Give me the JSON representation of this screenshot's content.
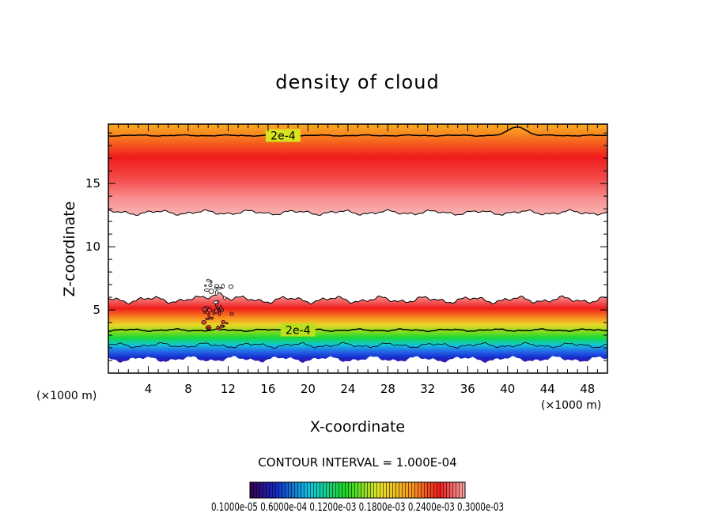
{
  "chart_data": {
    "type": "heatmap",
    "title": "density of cloud",
    "xlabel": "X-coordinate",
    "ylabel": "Z-coordinate",
    "x_unit_left": "(×1000 m)",
    "x_unit_right": "(×1000 m)",
    "xlim": [
      0,
      50
    ],
    "ylim": [
      0,
      19.7
    ],
    "x_ticks": [
      4,
      8,
      12,
      16,
      20,
      24,
      28,
      32,
      36,
      40,
      44,
      48
    ],
    "y_ticks": [
      5,
      10,
      15
    ],
    "colormap": "rainbow (purple → blue → cyan → green → yellow → orange → red → pink)",
    "contour_interval_text": "CONTOUR INTERVAL = 1.000E-04",
    "contour_labels": [
      {
        "text": "2e-4",
        "x": 17.5,
        "z": 18.8
      },
      {
        "text": "2e-4",
        "x": 19,
        "z": 3.4
      }
    ],
    "upper_layer": {
      "z_bottom": 12.7,
      "z_peak": 15,
      "z_top": 19.7,
      "contour_2e4_z": 18.8,
      "bump_x": 41
    },
    "lower_layer": {
      "z_bottom": 1.1,
      "z_peak": 4.8,
      "z_top": 5.8,
      "contour_2e4_z": 3.4,
      "convection_x": 11
    },
    "colorbar_labels_text": "0.1000e-05  0.6000e-04  0.1200e-03  0.1800e-03  0.2400e-03  0.3000e-03",
    "colors": {
      "purple": "#5a0aa0",
      "blue": "#1428d8",
      "cyan": "#10c8e0",
      "green": "#20d820",
      "yellowgreen": "#a8e41c",
      "yellow": "#e8e428",
      "orange": "#f89a20",
      "red": "#f01c1c",
      "pink": "#f8a8a8",
      "contour": "#000000"
    }
  }
}
